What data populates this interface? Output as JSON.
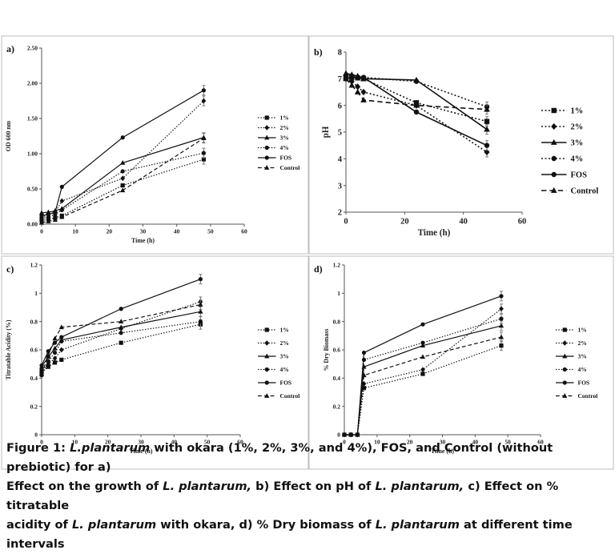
{
  "chart_data": [
    {
      "panel_label": "a)",
      "type": "line",
      "xlabel": "Time (h)",
      "ylabel": "OD 600 nm",
      "xlim": [
        0,
        60
      ],
      "ylim": [
        0,
        2.5
      ],
      "xticks": [
        "0",
        "10",
        "20",
        "30",
        "40",
        "50",
        "60"
      ],
      "yticks": [
        "0.00",
        "0.50",
        "1.00",
        "1.50",
        "2.00",
        "2.50"
      ],
      "legend_position": "right",
      "x": [
        0,
        2,
        4,
        6,
        24,
        48
      ],
      "series": [
        {
          "name": "1%",
          "values": [
            0.05,
            0.07,
            0.09,
            0.12,
            0.55,
            0.92
          ]
        },
        {
          "name": "2%",
          "values": [
            0.1,
            0.13,
            0.17,
            0.33,
            0.65,
            1.75
          ]
        },
        {
          "name": "3%",
          "values": [
            0.16,
            0.17,
            0.19,
            0.22,
            0.87,
            1.23
          ]
        },
        {
          "name": "4%",
          "values": [
            0.08,
            0.1,
            0.14,
            0.2,
            0.75,
            1.01
          ]
        },
        {
          "name": "FOS",
          "values": [
            0.12,
            0.14,
            0.17,
            0.53,
            1.23,
            1.9
          ]
        },
        {
          "name": "Control",
          "values": [
            0.02,
            0.04,
            0.06,
            0.1,
            0.48,
            1.22
          ]
        }
      ]
    },
    {
      "panel_label": "b)",
      "type": "line",
      "xlabel": "Time (h)",
      "ylabel": "pH",
      "xlim": [
        0,
        60
      ],
      "ylim": [
        2,
        8
      ],
      "xticks": [
        "0",
        "20",
        "40",
        "60"
      ],
      "yticks": [
        "2",
        "3",
        "4",
        "5",
        "6",
        "7",
        "8"
      ],
      "legend_position": "right",
      "x": [
        0,
        2,
        4,
        6,
        24,
        48
      ],
      "series": [
        {
          "name": "1%",
          "values": [
            7.05,
            7.05,
            7.03,
            7.0,
            6.1,
            5.4
          ]
        },
        {
          "name": "2%",
          "values": [
            7.0,
            6.9,
            6.7,
            6.5,
            6.0,
            4.25
          ]
        },
        {
          "name": "3%",
          "values": [
            7.2,
            7.15,
            7.1,
            7.0,
            6.95,
            5.1
          ]
        },
        {
          "name": "4%",
          "values": [
            7.1,
            7.1,
            7.05,
            7.05,
            6.9,
            5.95
          ]
        },
        {
          "name": "FOS",
          "values": [
            7.0,
            7.05,
            7.05,
            7.05,
            5.75,
            4.5
          ]
        },
        {
          "name": "Control",
          "values": [
            7.0,
            6.75,
            6.5,
            6.2,
            6.0,
            5.85
          ]
        }
      ]
    },
    {
      "panel_label": "c)",
      "type": "line",
      "xlabel": "Time (h)",
      "ylabel": "Titratable Acidity (%)",
      "xlim": [
        0,
        60
      ],
      "ylim": [
        0,
        1.2
      ],
      "xticks": [
        "0",
        "10",
        "20",
        "30",
        "40",
        "50",
        "60"
      ],
      "yticks": [
        "0",
        "0.2",
        "0.4",
        "0.6",
        "0.8",
        "1",
        "1.2"
      ],
      "legend_position": "right",
      "x": [
        0,
        2,
        4,
        6,
        24,
        48
      ],
      "series": [
        {
          "name": "1%",
          "values": [
            0.44,
            0.48,
            0.51,
            0.53,
            0.65,
            0.78
          ]
        },
        {
          "name": "2%",
          "values": [
            0.46,
            0.5,
            0.54,
            0.6,
            0.75,
            0.94
          ]
        },
        {
          "name": "3%",
          "values": [
            0.48,
            0.55,
            0.61,
            0.67,
            0.76,
            0.87
          ]
        },
        {
          "name": "4%",
          "values": [
            0.42,
            0.52,
            0.58,
            0.66,
            0.72,
            0.8
          ]
        },
        {
          "name": "FOS",
          "values": [
            0.49,
            0.59,
            0.65,
            0.69,
            0.89,
            1.1
          ]
        },
        {
          "name": "Control",
          "values": [
            0.43,
            0.56,
            0.68,
            0.76,
            0.8,
            0.92
          ]
        }
      ]
    },
    {
      "panel_label": "d)",
      "type": "line",
      "xlabel": "Time (h)",
      "ylabel": "% Dry Biomass",
      "xlim": [
        0,
        60
      ],
      "ylim": [
        0,
        1.2
      ],
      "xticks": [
        "0",
        "10",
        "20",
        "30",
        "40",
        "50",
        "60"
      ],
      "yticks": [
        "0",
        "0.2",
        "0.4",
        "0.6",
        "0.8",
        "1",
        "1.2"
      ],
      "legend_position": "right",
      "x": [
        0,
        2,
        4,
        6,
        24,
        48
      ],
      "series": [
        {
          "name": "1%",
          "values": [
            0,
            0,
            0,
            0.33,
            0.43,
            0.63
          ]
        },
        {
          "name": "2%",
          "values": [
            0,
            0,
            0,
            0.36,
            0.46,
            0.89
          ]
        },
        {
          "name": "3%",
          "values": [
            0,
            0,
            0,
            0.48,
            0.63,
            0.77
          ]
        },
        {
          "name": "4%",
          "values": [
            0,
            0,
            0,
            0.53,
            0.65,
            0.82
          ]
        },
        {
          "name": "FOS",
          "values": [
            0,
            0,
            0,
            0.58,
            0.78,
            0.98
          ]
        },
        {
          "name": "Control",
          "values": [
            0,
            0,
            0,
            0.42,
            0.55,
            0.69
          ]
        }
      ]
    }
  ],
  "series_styles": [
    {
      "name": "1%",
      "dash": "dot",
      "marker": "square"
    },
    {
      "name": "2%",
      "dash": "dot",
      "marker": "diamond"
    },
    {
      "name": "3%",
      "dash": "solid",
      "marker": "triangle"
    },
    {
      "name": "4%",
      "dash": "dot",
      "marker": "circle"
    },
    {
      "name": "FOS",
      "dash": "solid",
      "marker": "circle"
    },
    {
      "name": "Control",
      "dash": "dash",
      "marker": "triangle"
    }
  ],
  "caption": {
    "line1_prefix": "Figure 1: ",
    "line1_italic": "L.plantarum",
    "line1_rest": " with okara (1%, 2%, 3%, and 4%), FOS, and Control (without prebiotic) for a)",
    "line2_prefix": "Effect on the growth of ",
    "line2_italic1": "L. plantarum,",
    "line2_mid": " b) Effect on pH of ",
    "line2_italic2": "L. plantarum,",
    "line2_rest": " c) Effect on % titratable",
    "line3_prefix": "acidity of ",
    "line3_italic": "L. plantarum",
    "line3_rest": " with okara, d) % Dry biomass of ",
    "line3_italic2": "L. plantarum",
    "line3_end": " at different time intervals"
  }
}
